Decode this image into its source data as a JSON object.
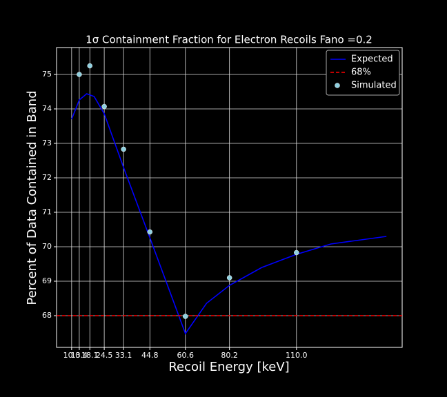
{
  "chart_data": {
    "type": "line",
    "title": "1σ Containment Fraction for Electron Recoils Fano =0.2",
    "x_label": "Recoil Energy [keV]",
    "y_label": "Percent of Data Contained in Band",
    "xlim": [
      3.3,
      157
    ],
    "ylim": [
      67.08,
      75.78
    ],
    "xticks": [
      {
        "value": 10,
        "label": "10.0"
      },
      13.4,
      18.1,
      24.5,
      33.1,
      44.8,
      60.6,
      80.2,
      {
        "value": 110,
        "label": "110.0"
      }
    ],
    "yticks": [
      68,
      69,
      70,
      71,
      72,
      73,
      74,
      75
    ],
    "grid": true,
    "legend": "upper right",
    "series": [
      {
        "name": "Expected",
        "color": "#0000ff",
        "style": "line",
        "x": [
          10,
          13.4,
          16.7,
          20,
          24.5,
          33.1,
          44.8,
          60.6,
          70,
          80.2,
          94.6,
          110,
          125.3,
          150
        ],
        "values": [
          73.7,
          74.26,
          74.44,
          74.36,
          73.86,
          72.3,
          70.26,
          67.48,
          68.36,
          68.88,
          69.4,
          69.78,
          70.08,
          70.3
        ]
      },
      {
        "name": "68%",
        "color": "#ff0000",
        "style": "hline",
        "value": 68
      },
      {
        "name": "Simulated",
        "color": "#8ed0e0",
        "style": "markers",
        "x": [
          13.4,
          18.1,
          24.5,
          33.1,
          44.8,
          60.6,
          80.2,
          110
        ],
        "values": [
          75.0,
          75.25,
          74.07,
          72.83,
          70.43,
          67.98,
          69.1,
          69.83
        ]
      }
    ]
  }
}
